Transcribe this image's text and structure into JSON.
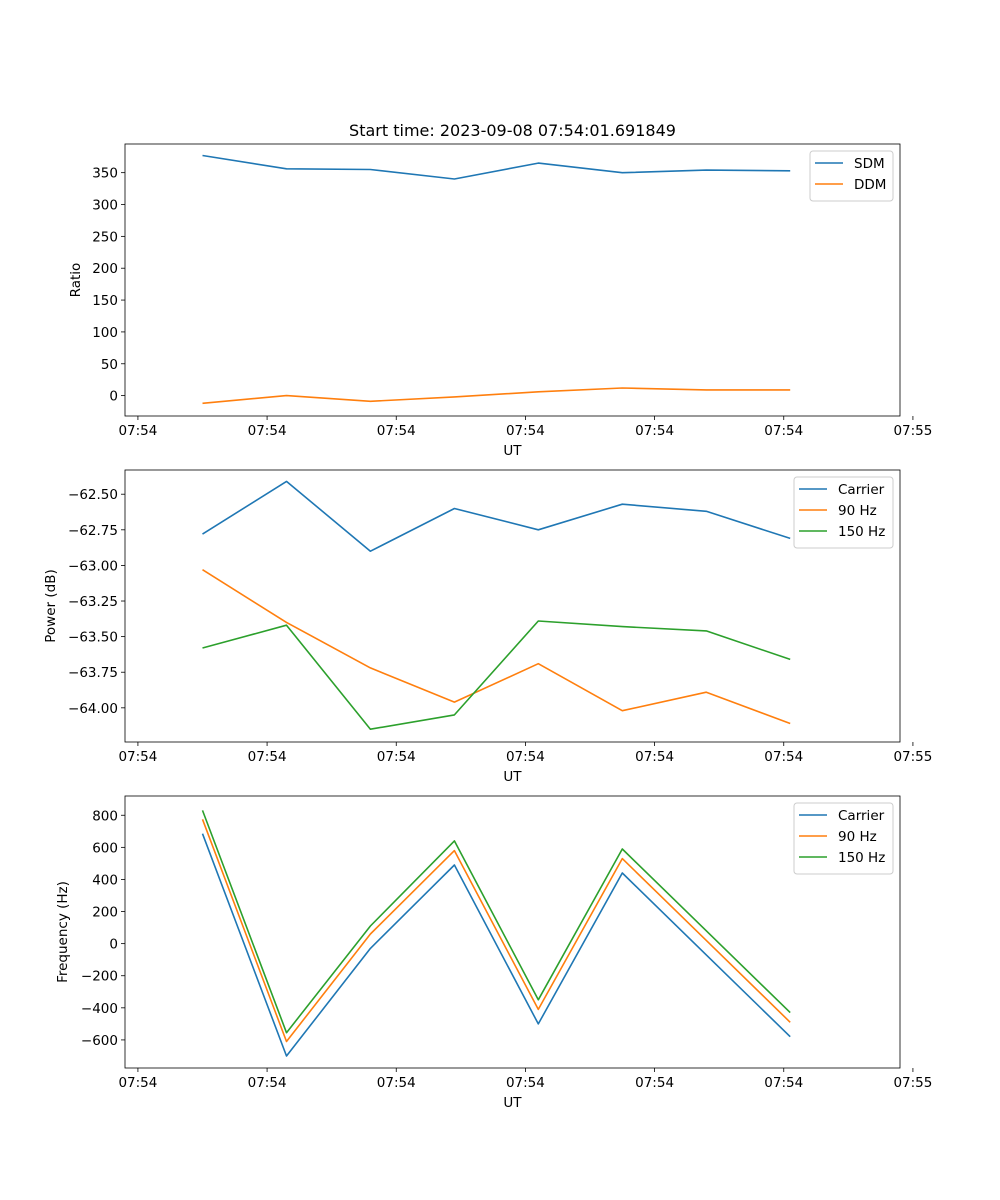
{
  "figure": {
    "title": "Start time: 2023-09-08 07:54:01.691849"
  },
  "colors": {
    "blue": "#1f77b4",
    "orange": "#ff7f0e",
    "green": "#2ca02c"
  },
  "chart_data": [
    {
      "type": "line",
      "title": "Start time: 2023-09-08 07:54:01.691849",
      "xlabel": "UT",
      "ylabel": "Ratio",
      "x": [
        0.5,
        1.15,
        1.8,
        2.45,
        3.1,
        3.75,
        4.4,
        5.05
      ],
      "xlim": [
        -0.1,
        5.9
      ],
      "x_ticks": [
        0,
        1,
        2,
        3,
        4,
        5,
        6
      ],
      "x_tick_labels": [
        "07:54",
        "07:54",
        "07:54",
        "07:54",
        "07:54",
        "07:54",
        "07:55"
      ],
      "ylim": [
        -32,
        395
      ],
      "y_ticks": [
        0,
        50,
        100,
        150,
        200,
        250,
        300,
        350
      ],
      "y_tick_labels": [
        "0",
        "50",
        "100",
        "150",
        "200",
        "250",
        "300",
        "350"
      ],
      "legend_position": "top-right",
      "series": [
        {
          "name": "SDM",
          "color": "#1f77b4",
          "values": [
            377,
            356,
            355,
            340,
            365,
            350,
            354,
            353
          ]
        },
        {
          "name": "DDM",
          "color": "#ff7f0e",
          "values": [
            -12,
            0,
            -9,
            -2,
            6,
            12,
            9,
            9
          ]
        }
      ]
    },
    {
      "type": "line",
      "title": "",
      "xlabel": "UT",
      "ylabel": "Power (dB)",
      "x": [
        0.5,
        1.15,
        1.8,
        2.45,
        3.1,
        3.75,
        4.4,
        5.05
      ],
      "xlim": [
        -0.1,
        5.9
      ],
      "x_ticks": [
        0,
        1,
        2,
        3,
        4,
        5,
        6
      ],
      "x_tick_labels": [
        "07:54",
        "07:54",
        "07:54",
        "07:54",
        "07:54",
        "07:54",
        "07:55"
      ],
      "ylim": [
        -64.24,
        -62.33
      ],
      "y_ticks": [
        -64.0,
        -63.75,
        -63.5,
        -63.25,
        -63.0,
        -62.75,
        -62.5
      ],
      "y_tick_labels": [
        "−64.00",
        "−63.75",
        "−63.50",
        "−63.25",
        "−63.00",
        "−62.75",
        "−62.50"
      ],
      "legend_position": "top-right",
      "series": [
        {
          "name": "Carrier",
          "color": "#1f77b4",
          "values": [
            -62.78,
            -62.41,
            -62.9,
            -62.6,
            -62.75,
            -62.57,
            -62.62,
            -62.81
          ]
        },
        {
          "name": "90 Hz",
          "color": "#ff7f0e",
          "values": [
            -63.03,
            -63.4,
            -63.72,
            -63.96,
            -63.69,
            -64.02,
            -63.89,
            -64.11
          ]
        },
        {
          "name": "150 Hz",
          "color": "#2ca02c",
          "values": [
            -63.58,
            -63.42,
            -64.15,
            -64.05,
            -63.39,
            -63.43,
            -63.46,
            -63.66
          ]
        }
      ]
    },
    {
      "type": "line",
      "title": "",
      "xlabel": "UT",
      "ylabel": "Frequency (Hz)",
      "x": [
        0.5,
        1.15,
        1.8,
        2.45,
        3.1,
        3.75,
        4.4,
        5.05
      ],
      "xlim": [
        -0.1,
        5.9
      ],
      "x_ticks": [
        0,
        1,
        2,
        3,
        4,
        5,
        6
      ],
      "x_tick_labels": [
        "07:54",
        "07:54",
        "07:54",
        "07:54",
        "07:54",
        "07:54",
        "07:55"
      ],
      "ylim": [
        -775,
        920
      ],
      "y_ticks": [
        -600,
        -400,
        -200,
        0,
        200,
        400,
        600,
        800
      ],
      "y_tick_labels": [
        "−600",
        "−400",
        "−200",
        "0",
        "200",
        "400",
        "600",
        "800"
      ],
      "legend_position": "top-right",
      "series": [
        {
          "name": "Carrier",
          "color": "#1f77b4",
          "values": [
            685,
            -700,
            -30,
            490,
            -500,
            440,
            -70,
            -580
          ]
        },
        {
          "name": "90 Hz",
          "color": "#ff7f0e",
          "values": [
            775,
            -610,
            60,
            580,
            -410,
            530,
            20,
            -490
          ]
        },
        {
          "name": "150 Hz",
          "color": "#2ca02c",
          "values": [
            830,
            -555,
            110,
            640,
            -350,
            590,
            80,
            -430
          ]
        }
      ]
    }
  ]
}
